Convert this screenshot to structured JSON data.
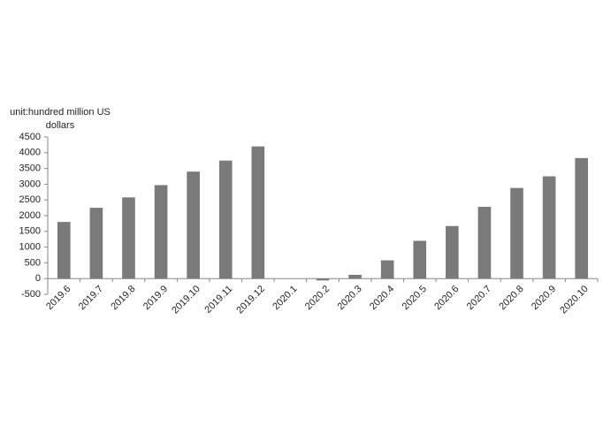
{
  "chart_data": {
    "type": "bar",
    "y_label": "unit:hundred million US dollars",
    "categories": [
      "2019.6",
      "2019.7",
      "2019.8",
      "2019.9",
      "2019.10",
      "2019.11",
      "2019.12",
      "2020.1",
      "2020.2",
      "2020.3",
      "2020.4",
      "2020.5",
      "2020.6",
      "2020.7",
      "2020.8",
      "2020.9",
      "2020.10"
    ],
    "values": [
      1800,
      2250,
      2580,
      2970,
      3400,
      3750,
      4200,
      0,
      -60,
      120,
      580,
      1200,
      1670,
      2280,
      2880,
      3250,
      3830
    ],
    "color": "#7a7a7a",
    "ylim": [
      -500,
      4500
    ],
    "yticks": [
      -500,
      0,
      500,
      1000,
      1500,
      2000,
      2500,
      3000,
      3500,
      4000,
      4500
    ],
    "grid": false
  }
}
